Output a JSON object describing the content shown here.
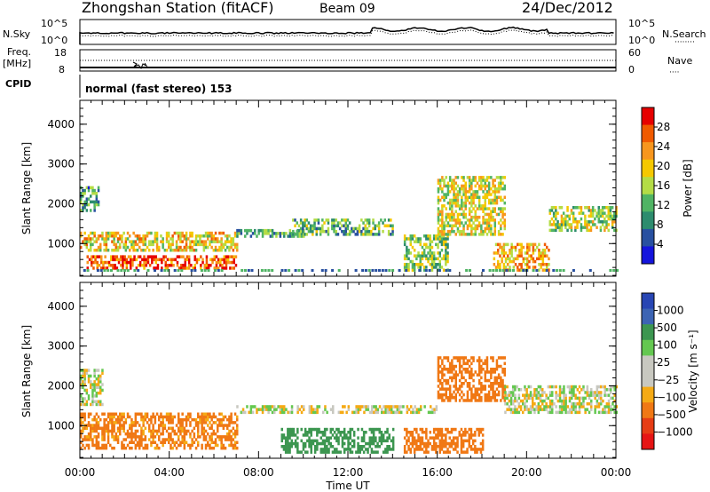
{
  "header": {
    "station": "Zhongshan Station (fitACF)",
    "beam": "Beam 09",
    "date": "24/Dec/2012"
  },
  "top_panels": {
    "nsky_label": "N.Sky",
    "nsearch_label": "N.Search",
    "freq_label_1": "Freq.",
    "freq_label_2": "[MHz]",
    "nave_label": "Nave",
    "cpid_label": "CPID",
    "cpid_value": "normal (fast stereo) 153",
    "noise_ticks_left": [
      "10^5",
      "10^0"
    ],
    "noise_ticks_right": [
      "10^5",
      "10^0"
    ],
    "freq_ticks": [
      "18",
      "8"
    ],
    "nave_ticks": [
      "60",
      "0"
    ]
  },
  "colorbars": {
    "power": {
      "title": "Power [dB]",
      "ticks": [
        "28",
        "24",
        "20",
        "16",
        "12",
        "8",
        "4"
      ],
      "colors": [
        "#e60000",
        "#f05a00",
        "#f7961e",
        "#f5c800",
        "#b4dc46",
        "#50b464",
        "#2d8c6e",
        "#2850a0",
        "#1414dc"
      ]
    },
    "velocity": {
      "title": "Velocity [m s⁻¹]",
      "ticks": [
        "1000",
        "500",
        "100",
        "25",
        "−25",
        "−100",
        "−500",
        "−1000"
      ],
      "colors": [
        "#2846b4",
        "#3c64b4",
        "#3c9650",
        "#64c850",
        "#c8c8c0",
        "#c8c8c0",
        "#f5aa14",
        "#f07814",
        "#e63c14",
        "#e61414"
      ]
    }
  },
  "chart_data": [
    {
      "type": "heatmap",
      "name": "power",
      "ylabel": "Slant Range [km]",
      "ylim": [
        180,
        4600
      ],
      "yticks": [
        "4000",
        "3000",
        "2000",
        "1000"
      ],
      "xlim": [
        "00:00",
        "24:00"
      ],
      "xticks": [
        "00:00",
        "04:00",
        "08:00",
        "12:00",
        "16:00",
        "20:00",
        "00:00"
      ],
      "z_units": "dB",
      "z_range": [
        0,
        32
      ],
      "regions": [
        {
          "t": [
            0.0,
            7.0
          ],
          "r": [
            800,
            1300
          ],
          "v": 20
        },
        {
          "t": [
            0.3,
            7.0
          ],
          "r": [
            350,
            700
          ],
          "v": 28
        },
        {
          "t": [
            0.0,
            0.8
          ],
          "r": [
            1800,
            2400
          ],
          "v": 9
        },
        {
          "t": [
            7.0,
            10.0
          ],
          "r": [
            1150,
            1350
          ],
          "v": 10
        },
        {
          "t": [
            9.5,
            14.0
          ],
          "r": [
            1200,
            1600
          ],
          "v": 12
        },
        {
          "t": [
            14.5,
            16.5
          ],
          "r": [
            300,
            1200
          ],
          "v": 14
        },
        {
          "t": [
            16.0,
            19.0
          ],
          "r": [
            1200,
            2700
          ],
          "v": 18
        },
        {
          "t": [
            18.5,
            21.0
          ],
          "r": [
            300,
            1000
          ],
          "v": 22
        },
        {
          "t": [
            21.0,
            24.0
          ],
          "r": [
            1300,
            1900
          ],
          "v": 16
        }
      ]
    },
    {
      "type": "heatmap",
      "name": "velocity",
      "ylabel": "Slant Range [km]",
      "ylim": [
        180,
        4600
      ],
      "yticks": [
        "4000",
        "3000",
        "2000",
        "1000"
      ],
      "xlim": [
        "00:00",
        "24:00"
      ],
      "xticks": [
        "00:00",
        "04:00",
        "08:00",
        "12:00",
        "16:00",
        "20:00",
        "00:00"
      ],
      "xlabel": "Time UT",
      "z_units": "m s⁻¹",
      "regions": [
        {
          "t": [
            0.0,
            7.0
          ],
          "r": [
            400,
            1300
          ],
          "v": -150
        },
        {
          "t": [
            0.0,
            1.0
          ],
          "r": [
            1500,
            2400
          ],
          "v": 0
        },
        {
          "t": [
            7.0,
            16.0
          ],
          "r": [
            1300,
            1500
          ],
          "v": 0
        },
        {
          "t": [
            14.5,
            18.0
          ],
          "r": [
            300,
            900
          ],
          "v": -300
        },
        {
          "t": [
            16.0,
            19.0
          ],
          "r": [
            1600,
            2700
          ],
          "v": -200
        },
        {
          "t": [
            19.0,
            24.0
          ],
          "r": [
            1300,
            2000
          ],
          "v": 0
        },
        {
          "t": [
            9.0,
            14.0
          ],
          "r": [
            300,
            900
          ],
          "v": 200
        }
      ]
    }
  ]
}
